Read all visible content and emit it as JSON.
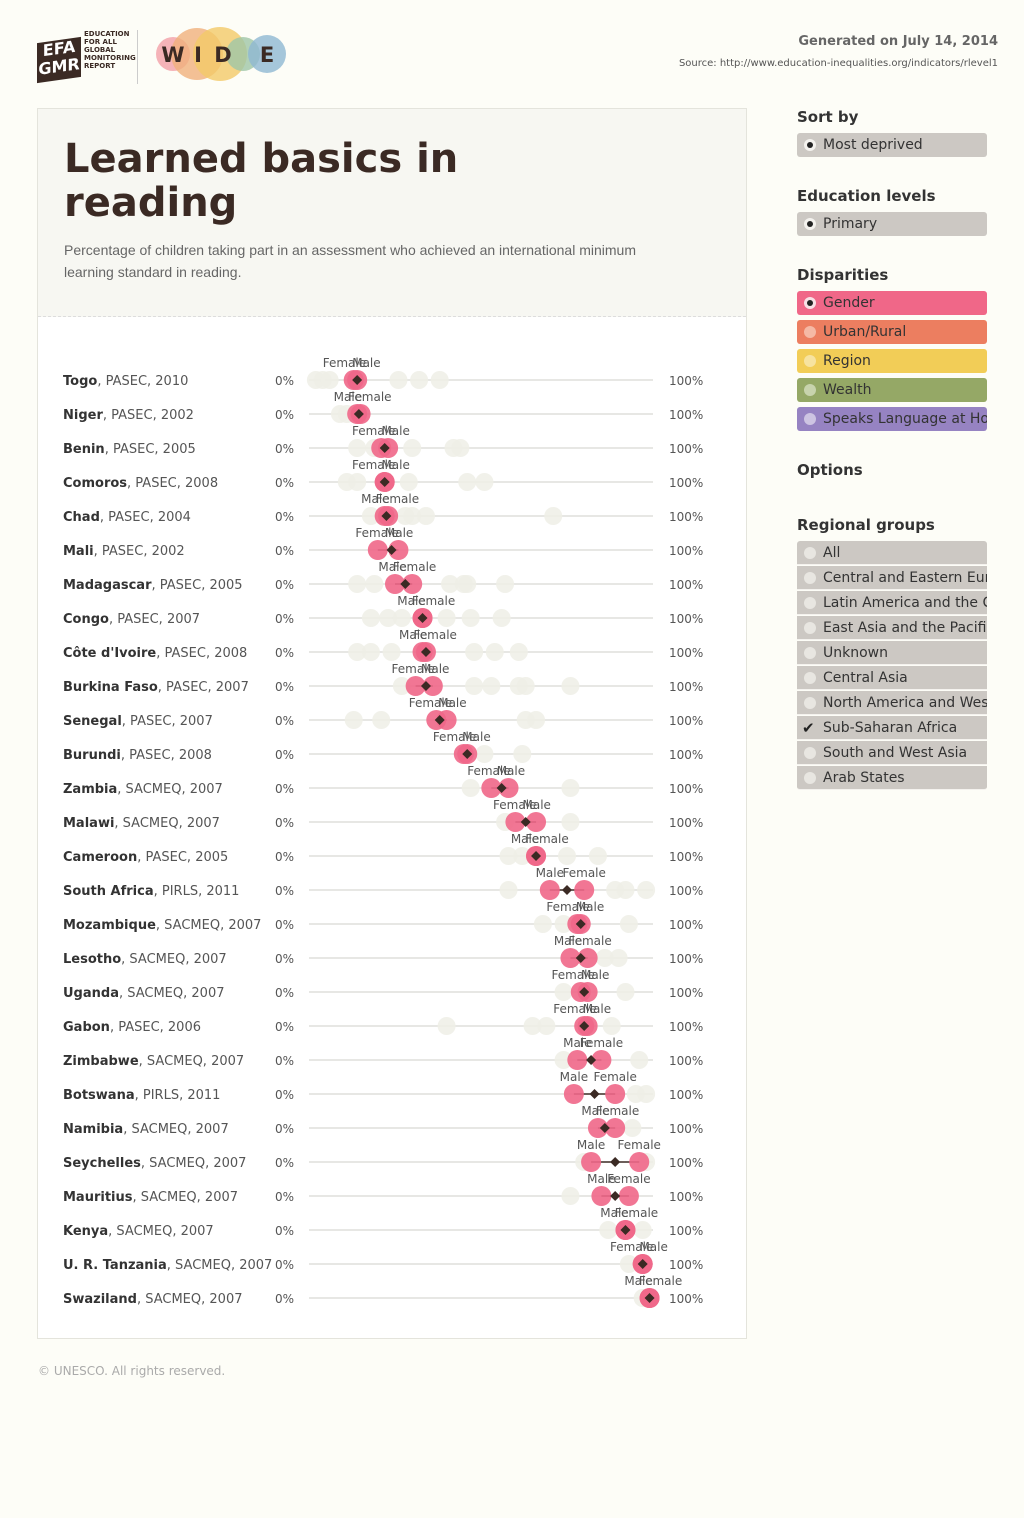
{
  "header": {
    "efa_lines": [
      "EFA",
      "GMR"
    ],
    "efa_small_lines": [
      "EDUCATION",
      "FOR ALL",
      "GLOBAL",
      "MONITORING",
      "REPORT"
    ],
    "wide_letters": [
      "W",
      "I",
      "D",
      "E"
    ],
    "generated": "Generated on July 14, 2014",
    "source": "Source: http://www.education-inequalities.org/indicators/rlevel1"
  },
  "colors": {
    "wide": [
      "#f2a0a8",
      "#f0b07c",
      "#f2c968",
      "#9fc5a6",
      "#8fb8d2"
    ],
    "gender": "#f06788",
    "urban": "#ec7e60",
    "region": "#f2cd57",
    "wealth": "#95a866",
    "language": "#9683c2",
    "ghost": "#eeeee6",
    "diamond": "#3b2a24"
  },
  "chart_data": {
    "type": "dot-range",
    "title": "Learned basics in reading",
    "subtitle": "Percentage of children taking part in an assessment who achieved an international minimum learning standard in reading.",
    "axis_min_label": "0%",
    "axis_max_label": "100%",
    "xlim": [
      0,
      100
    ],
    "rows": [
      {
        "country": "Togo",
        "survey": "PASEC, 2010",
        "left": {
          "label": "Female",
          "value": 13
        },
        "right": {
          "label": "Male",
          "value": 14
        },
        "total": 14,
        "others": [
          2,
          4,
          6,
          26,
          32,
          38
        ]
      },
      {
        "country": "Niger",
        "survey": "PASEC, 2002",
        "left": {
          "label": "Male",
          "value": 14
        },
        "right": {
          "label": "Female",
          "value": 15
        },
        "total": 14.5,
        "others": [
          9,
          11
        ]
      },
      {
        "country": "Benin",
        "survey": "PASEC, 2005",
        "left": {
          "label": "Female",
          "value": 21
        },
        "right": {
          "label": "Male",
          "value": 23
        },
        "total": 22,
        "others": [
          14,
          19,
          30,
          42,
          44
        ]
      },
      {
        "country": "Comoros",
        "survey": "PASEC, 2008",
        "left": {
          "label": "Female",
          "value": 22
        },
        "right": {
          "label": "Male",
          "value": 22
        },
        "total": 22,
        "others": [
          11,
          14,
          29,
          46,
          51
        ]
      },
      {
        "country": "Chad",
        "survey": "PASEC, 2004",
        "left": {
          "label": "Male",
          "value": 22
        },
        "right": {
          "label": "Female",
          "value": 23
        },
        "total": 22.5,
        "others": [
          18,
          28,
          30,
          34,
          71
        ]
      },
      {
        "country": "Mali",
        "survey": "PASEC, 2002",
        "left": {
          "label": "Female",
          "value": 20
        },
        "right": {
          "label": "Male",
          "value": 26
        },
        "total": 24,
        "others": []
      },
      {
        "country": "Madagascar",
        "survey": "PASEC, 2005",
        "left": {
          "label": "Male",
          "value": 25
        },
        "right": {
          "label": "Female",
          "value": 30
        },
        "total": 28,
        "others": [
          14,
          19,
          41,
          45,
          46,
          57
        ]
      },
      {
        "country": "Congo",
        "survey": "PASEC, 2007",
        "left": {
          "label": "Male",
          "value": 33
        },
        "right": {
          "label": "Female",
          "value": 33
        },
        "total": 33,
        "others": [
          18,
          23,
          27,
          40,
          47,
          56
        ]
      },
      {
        "country": "Côte d'Ivoire",
        "survey": "PASEC, 2008",
        "left": {
          "label": "Male",
          "value": 33
        },
        "right": {
          "label": "Female",
          "value": 34
        },
        "total": 34,
        "others": [
          14,
          18,
          24,
          48,
          54,
          61
        ]
      },
      {
        "country": "Burkina Faso",
        "survey": "PASEC, 2007",
        "left": {
          "label": "Female",
          "value": 31
        },
        "right": {
          "label": "Male",
          "value": 36
        },
        "total": 34,
        "others": [
          27,
          48,
          53,
          61,
          63,
          76
        ]
      },
      {
        "country": "Senegal",
        "survey": "PASEC, 2007",
        "left": {
          "label": "Female",
          "value": 37
        },
        "right": {
          "label": "Male",
          "value": 40
        },
        "total": 38,
        "others": [
          13,
          21,
          63,
          66
        ]
      },
      {
        "country": "Burundi",
        "survey": "PASEC, 2008",
        "left": {
          "label": "Female",
          "value": 45
        },
        "right": {
          "label": "Male",
          "value": 46
        },
        "total": 46,
        "others": [
          51,
          62
        ]
      },
      {
        "country": "Zambia",
        "survey": "SACMEQ, 2007",
        "left": {
          "label": "Female",
          "value": 53
        },
        "right": {
          "label": "Male",
          "value": 58
        },
        "total": 56,
        "others": [
          47,
          76
        ]
      },
      {
        "country": "Malawi",
        "survey": "SACMEQ, 2007",
        "left": {
          "label": "Female",
          "value": 60
        },
        "right": {
          "label": "Male",
          "value": 66
        },
        "total": 63,
        "others": [
          57,
          76
        ]
      },
      {
        "country": "Cameroon",
        "survey": "PASEC, 2005",
        "left": {
          "label": "Male",
          "value": 66
        },
        "right": {
          "label": "Female",
          "value": 66
        },
        "total": 66,
        "others": [
          58,
          62,
          75,
          84
        ]
      },
      {
        "country": "South Africa",
        "survey": "PIRLS, 2011",
        "left": {
          "label": "Male",
          "value": 70
        },
        "right": {
          "label": "Female",
          "value": 80
        },
        "total": 75,
        "others": [
          58,
          89,
          92,
          98
        ]
      },
      {
        "country": "Mozambique",
        "survey": "SACMEQ, 2007",
        "left": {
          "label": "Female",
          "value": 78
        },
        "right": {
          "label": "Male",
          "value": 79
        },
        "total": 79,
        "others": [
          68,
          74,
          93
        ]
      },
      {
        "country": "Lesotho",
        "survey": "SACMEQ, 2007",
        "left": {
          "label": "Male",
          "value": 76
        },
        "right": {
          "label": "Female",
          "value": 81
        },
        "total": 79,
        "others": [
          86,
          90
        ]
      },
      {
        "country": "Uganda",
        "survey": "SACMEQ, 2007",
        "left": {
          "label": "Female",
          "value": 79
        },
        "right": {
          "label": "Male",
          "value": 81
        },
        "total": 80,
        "others": [
          74,
          92
        ]
      },
      {
        "country": "Gabon",
        "survey": "PASEC, 2006",
        "left": {
          "label": "Female",
          "value": 80
        },
        "right": {
          "label": "Male",
          "value": 81
        },
        "total": 80,
        "others": [
          40,
          65,
          69,
          88
        ]
      },
      {
        "country": "Zimbabwe",
        "survey": "SACMEQ, 2007",
        "left": {
          "label": "Male",
          "value": 78
        },
        "right": {
          "label": "Female",
          "value": 85
        },
        "total": 82,
        "others": [
          74,
          96
        ]
      },
      {
        "country": "Botswana",
        "survey": "PIRLS, 2011",
        "left": {
          "label": "Male",
          "value": 77
        },
        "right": {
          "label": "Female",
          "value": 89
        },
        "total": 83,
        "others": [
          95,
          98
        ]
      },
      {
        "country": "Namibia",
        "survey": "SACMEQ, 2007",
        "left": {
          "label": "Male",
          "value": 84
        },
        "right": {
          "label": "Female",
          "value": 89
        },
        "total": 86,
        "others": [
          94
        ]
      },
      {
        "country": "Seychelles",
        "survey": "SACMEQ, 2007",
        "left": {
          "label": "Male",
          "value": 82
        },
        "right": {
          "label": "Female",
          "value": 96
        },
        "total": 89,
        "others": [
          80,
          98
        ]
      },
      {
        "country": "Mauritius",
        "survey": "SACMEQ, 2007",
        "left": {
          "label": "Male",
          "value": 85
        },
        "right": {
          "label": "Female",
          "value": 93
        },
        "total": 89,
        "others": [
          76
        ]
      },
      {
        "country": "Kenya",
        "survey": "SACMEQ, 2007",
        "left": {
          "label": "Male",
          "value": 92
        },
        "right": {
          "label": "Female",
          "value": 92
        },
        "total": 92,
        "others": [
          87,
          97
        ]
      },
      {
        "country": "U. R. Tanzania",
        "survey": "SACMEQ, 2007",
        "left": {
          "label": "Female",
          "value": 97
        },
        "right": {
          "label": "Male",
          "value": 97
        },
        "total": 97,
        "others": [
          93
        ]
      },
      {
        "country": "Swaziland",
        "survey": "SACMEQ, 2007",
        "left": {
          "label": "Male",
          "value": 99
        },
        "right": {
          "label": "Female",
          "value": 99
        },
        "total": 99,
        "others": [
          97
        ]
      }
    ]
  },
  "sidebar": {
    "sort_by": {
      "heading": "Sort by",
      "option": "Most deprived"
    },
    "education_levels": {
      "heading": "Education levels",
      "option": "Primary"
    },
    "disparities": {
      "heading": "Disparities",
      "items": [
        {
          "label": "Gender",
          "color": "#f06788",
          "dot": "#f8e0e6",
          "selected": true
        },
        {
          "label": "Urban/Rural",
          "color": "#ec7e60",
          "dot": "#f5b9a5",
          "selected": false
        },
        {
          "label": "Region",
          "color": "#f2cd57",
          "dot": "#f7e3a0",
          "selected": false
        },
        {
          "label": "Wealth",
          "color": "#95a866",
          "dot": "#c8d3ad",
          "selected": false
        },
        {
          "label": "Speaks Language at Home",
          "color": "#9683c2",
          "dot": "#cdc4e2",
          "selected": false
        }
      ]
    },
    "options_heading": "Options",
    "regional_groups": {
      "heading": "Regional groups",
      "items": [
        {
          "label": "All",
          "checked": false
        },
        {
          "label": "Central and Eastern Europe",
          "checked": false
        },
        {
          "label": "Latin America and the Caribbean",
          "checked": false
        },
        {
          "label": "East Asia and the Pacific",
          "checked": false
        },
        {
          "label": "Unknown",
          "checked": false
        },
        {
          "label": "Central Asia",
          "checked": false
        },
        {
          "label": "North America and Western Europe",
          "checked": false
        },
        {
          "label": "Sub-Saharan Africa",
          "checked": true
        },
        {
          "label": "South and West Asia",
          "checked": false
        },
        {
          "label": "Arab States",
          "checked": false
        }
      ]
    }
  },
  "footer": {
    "copyright": "© UNESCO. All rights reserved."
  }
}
